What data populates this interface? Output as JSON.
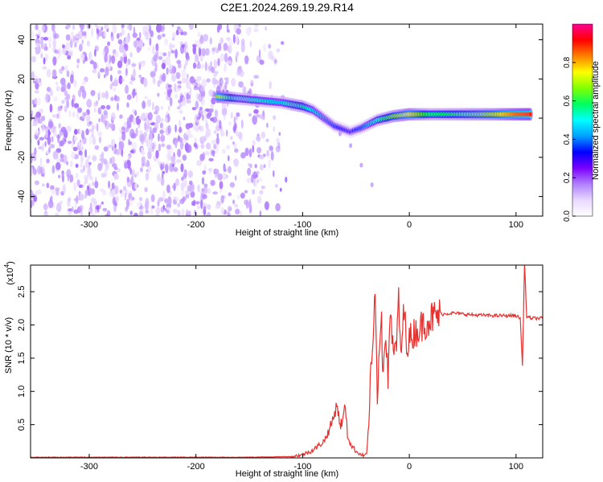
{
  "figure": {
    "title": "C2E1.2024.269.19.29.R14"
  },
  "chart_data": [
    {
      "type": "heatmap",
      "xlabel": "Height of straight line (km)",
      "ylabel": "Frequency (Hz)",
      "xlim": [
        -355,
        125
      ],
      "ylim": [
        -50,
        48
      ],
      "xticks": [
        -300,
        -200,
        -100,
        0,
        100
      ],
      "yticks": [
        -40,
        -20,
        0,
        20,
        40
      ],
      "colorbar": {
        "label": "Normalized spectral amplitude",
        "range": [
          0,
          1
        ],
        "ticks": [
          0.0,
          0.2,
          0.4,
          0.6,
          0.8
        ],
        "tick_labels": [
          "0.0",
          "0.2",
          "0.4",
          "0.6",
          "0.8"
        ],
        "colormap": [
          "#ffffff",
          "#e8d8ff",
          "#b080ff",
          "#7a00ff",
          "#0000ff",
          "#00a0ff",
          "#00ffff",
          "#00ff60",
          "#80ff00",
          "#ffff00",
          "#ff8000",
          "#ff0000",
          "#ff0090"
        ]
      },
      "ridge_points": [
        {
          "x": -180,
          "y": 11,
          "amp": 0.78
        },
        {
          "x": -160,
          "y": 10,
          "amp": 0.5
        },
        {
          "x": -140,
          "y": 9,
          "amp": 0.48
        },
        {
          "x": -120,
          "y": 8,
          "amp": 0.45
        },
        {
          "x": -110,
          "y": 7,
          "amp": 0.55
        },
        {
          "x": -100,
          "y": 6,
          "amp": 0.6
        },
        {
          "x": -90,
          "y": 4,
          "amp": 0.45
        },
        {
          "x": -80,
          "y": 0,
          "amp": 0.4
        },
        {
          "x": -70,
          "y": -4,
          "amp": 0.35
        },
        {
          "x": -55,
          "y": -7,
          "amp": 0.3
        },
        {
          "x": -45,
          "y": -5,
          "amp": 0.35
        },
        {
          "x": -30,
          "y": -1,
          "amp": 0.5
        },
        {
          "x": -15,
          "y": 1,
          "amp": 0.65
        },
        {
          "x": 0,
          "y": 2,
          "amp": 0.75
        },
        {
          "x": 20,
          "y": 2,
          "amp": 0.55
        },
        {
          "x": 40,
          "y": 2,
          "amp": 0.6
        },
        {
          "x": 60,
          "y": 2,
          "amp": 0.65
        },
        {
          "x": 80,
          "y": 2,
          "amp": 0.7
        },
        {
          "x": 100,
          "y": 2,
          "amp": 0.85
        },
        {
          "x": 115,
          "y": 2,
          "amp": 0.9
        }
      ],
      "faint_track": [
        {
          "x": -65,
          "y": -8
        },
        {
          "x": -55,
          "y": -14
        },
        {
          "x": -45,
          "y": -24
        },
        {
          "x": -35,
          "y": -34
        }
      ],
      "noise_region": {
        "x_start": -355,
        "x_end": -120
      }
    },
    {
      "type": "line",
      "xlabel": "Height of straight line (km)",
      "ylabel": "SNR (10 * v/v)",
      "y_multiplier_label": "(x10",
      "y_multiplier_exp": "4",
      "y_multiplier_close": ")",
      "xlim": [
        -355,
        125
      ],
      "ylim": [
        0,
        2.9
      ],
      "xticks": [
        -300,
        -200,
        -100,
        0,
        100
      ],
      "yticks": [
        0.5,
        1.0,
        1.5,
        2.0,
        2.5
      ],
      "ytick_labels": [
        "0.5",
        "1.0",
        "1.5",
        "2.0",
        "2.5"
      ],
      "color": "#e8302e",
      "series": [
        {
          "x": [
            -355,
            -300,
            -200,
            -150,
            -110,
            -100,
            -90,
            -80,
            -75,
            -70,
            -68,
            -65,
            -62,
            -60,
            -58,
            -55,
            -50,
            -45,
            -42,
            -40,
            -38,
            -36,
            -34,
            -32,
            -30,
            -28,
            -26,
            -25,
            -22,
            -20,
            -18,
            -15,
            -12,
            -10,
            -8,
            -5,
            -2,
            0,
            5,
            10,
            15,
            20,
            30,
            40,
            60,
            80,
            100,
            104,
            106,
            108,
            110,
            115,
            125
          ],
          "y": [
            0.01,
            0.01,
            0.01,
            0.01,
            0.02,
            0.05,
            0.12,
            0.25,
            0.42,
            0.66,
            0.85,
            0.48,
            0.58,
            0.8,
            0.35,
            0.2,
            0.1,
            0.05,
            0.03,
            0.08,
            0.5,
            1.4,
            1.6,
            2.45,
            0.9,
            1.55,
            2.2,
            1.25,
            2.0,
            1.1,
            2.35,
            1.5,
            1.75,
            2.3,
            1.55,
            2.2,
            1.7,
            1.78,
            1.9,
            1.95,
            2.05,
            2.1,
            2.16,
            2.18,
            2.15,
            2.14,
            2.14,
            2.1,
            1.38,
            2.95,
            2.12,
            2.1,
            2.1
          ]
        }
      ]
    }
  ]
}
